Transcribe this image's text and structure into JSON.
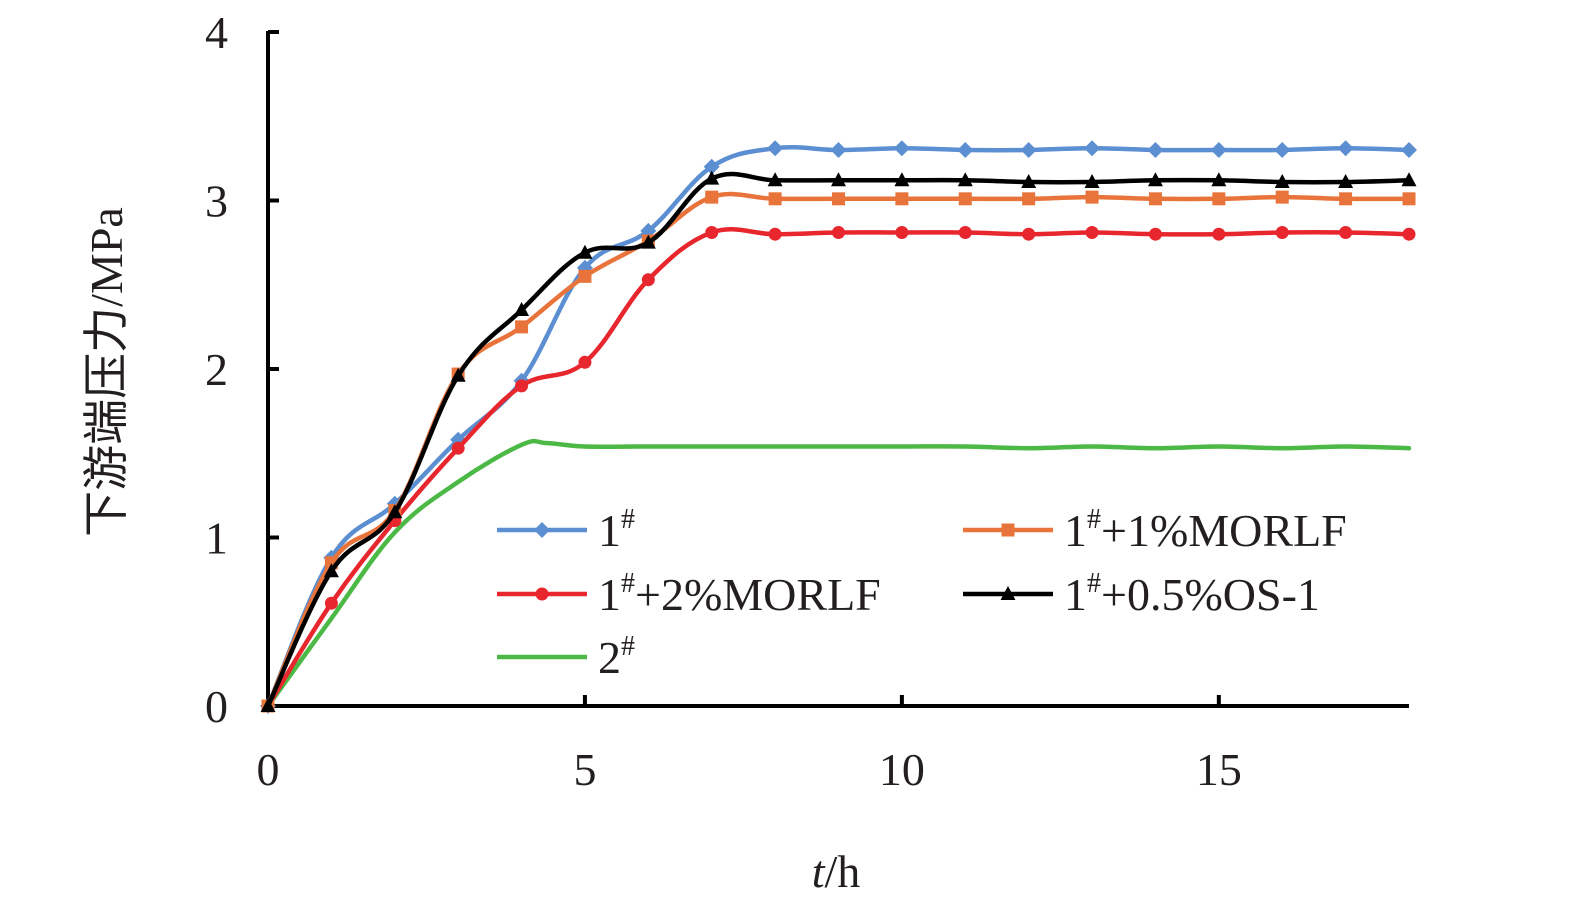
{
  "chart_data": {
    "type": "line",
    "title": "",
    "xlabel": {
      "italic": "t",
      "rest": "/h"
    },
    "ylabel": "下游端压力/MPa",
    "xlim": [
      0,
      18
    ],
    "ylim": [
      0,
      4
    ],
    "xticks": [
      0,
      5,
      10,
      15
    ],
    "yticks": [
      0,
      1,
      2,
      3,
      4
    ],
    "grid": false,
    "legend": "lower-right-inside",
    "series": [
      {
        "name": "1",
        "sup": "#",
        "suffix": "",
        "color": "#5b8fd1",
        "marker": "diamond",
        "x": [
          0,
          1,
          2,
          3,
          4,
          5,
          6,
          7,
          8,
          9,
          10,
          11,
          12,
          13,
          14,
          15,
          16,
          17,
          18
        ],
        "y": [
          0,
          0.88,
          1.2,
          1.58,
          1.93,
          2.6,
          2.82,
          3.2,
          3.31,
          3.3,
          3.31,
          3.3,
          3.3,
          3.31,
          3.3,
          3.3,
          3.3,
          3.31,
          3.3
        ]
      },
      {
        "name": "1",
        "sup": "#",
        "suffix": "+1%MORLF",
        "color": "#e8743b",
        "marker": "square",
        "x": [
          0,
          1,
          2,
          3,
          4,
          5,
          6,
          7,
          8,
          9,
          10,
          11,
          12,
          13,
          14,
          15,
          16,
          17,
          18
        ],
        "y": [
          0,
          0.85,
          1.16,
          1.97,
          2.25,
          2.55,
          2.76,
          3.02,
          3.01,
          3.01,
          3.01,
          3.01,
          3.01,
          3.02,
          3.01,
          3.01,
          3.02,
          3.01,
          3.01
        ]
      },
      {
        "name": "1",
        "sup": "#",
        "suffix": "+2%MORLF",
        "color": "#e8262d",
        "marker": "circle",
        "x": [
          0,
          1,
          2,
          3,
          4,
          5,
          6,
          7,
          8,
          9,
          10,
          11,
          12,
          13,
          14,
          15,
          16,
          17,
          18
        ],
        "y": [
          0,
          0.61,
          1.1,
          1.53,
          1.9,
          2.04,
          2.53,
          2.81,
          2.8,
          2.81,
          2.81,
          2.81,
          2.8,
          2.81,
          2.8,
          2.8,
          2.81,
          2.81,
          2.8
        ]
      },
      {
        "name": "1",
        "sup": "#",
        "suffix": "+0.5%OS-1",
        "color": "#000000",
        "marker": "triangle",
        "x": [
          0,
          1,
          2,
          3,
          4,
          5,
          6,
          7,
          8,
          9,
          10,
          11,
          12,
          13,
          14,
          15,
          16,
          17,
          18
        ],
        "y": [
          0,
          0.8,
          1.15,
          1.96,
          2.35,
          2.69,
          2.75,
          3.13,
          3.12,
          3.12,
          3.12,
          3.12,
          3.11,
          3.11,
          3.12,
          3.12,
          3.11,
          3.11,
          3.12
        ]
      },
      {
        "name": "2",
        "sup": "#",
        "suffix": "",
        "color": "#4cb845",
        "marker": "none",
        "x": [
          0,
          1,
          2,
          3,
          4,
          4.4,
          5,
          6,
          7,
          8,
          9,
          10,
          11,
          12,
          13,
          14,
          15,
          16,
          17,
          18
        ],
        "y": [
          0,
          0.52,
          1.03,
          1.33,
          1.55,
          1.56,
          1.54,
          1.54,
          1.54,
          1.54,
          1.54,
          1.54,
          1.54,
          1.53,
          1.54,
          1.53,
          1.54,
          1.53,
          1.54,
          1.53
        ]
      }
    ]
  }
}
